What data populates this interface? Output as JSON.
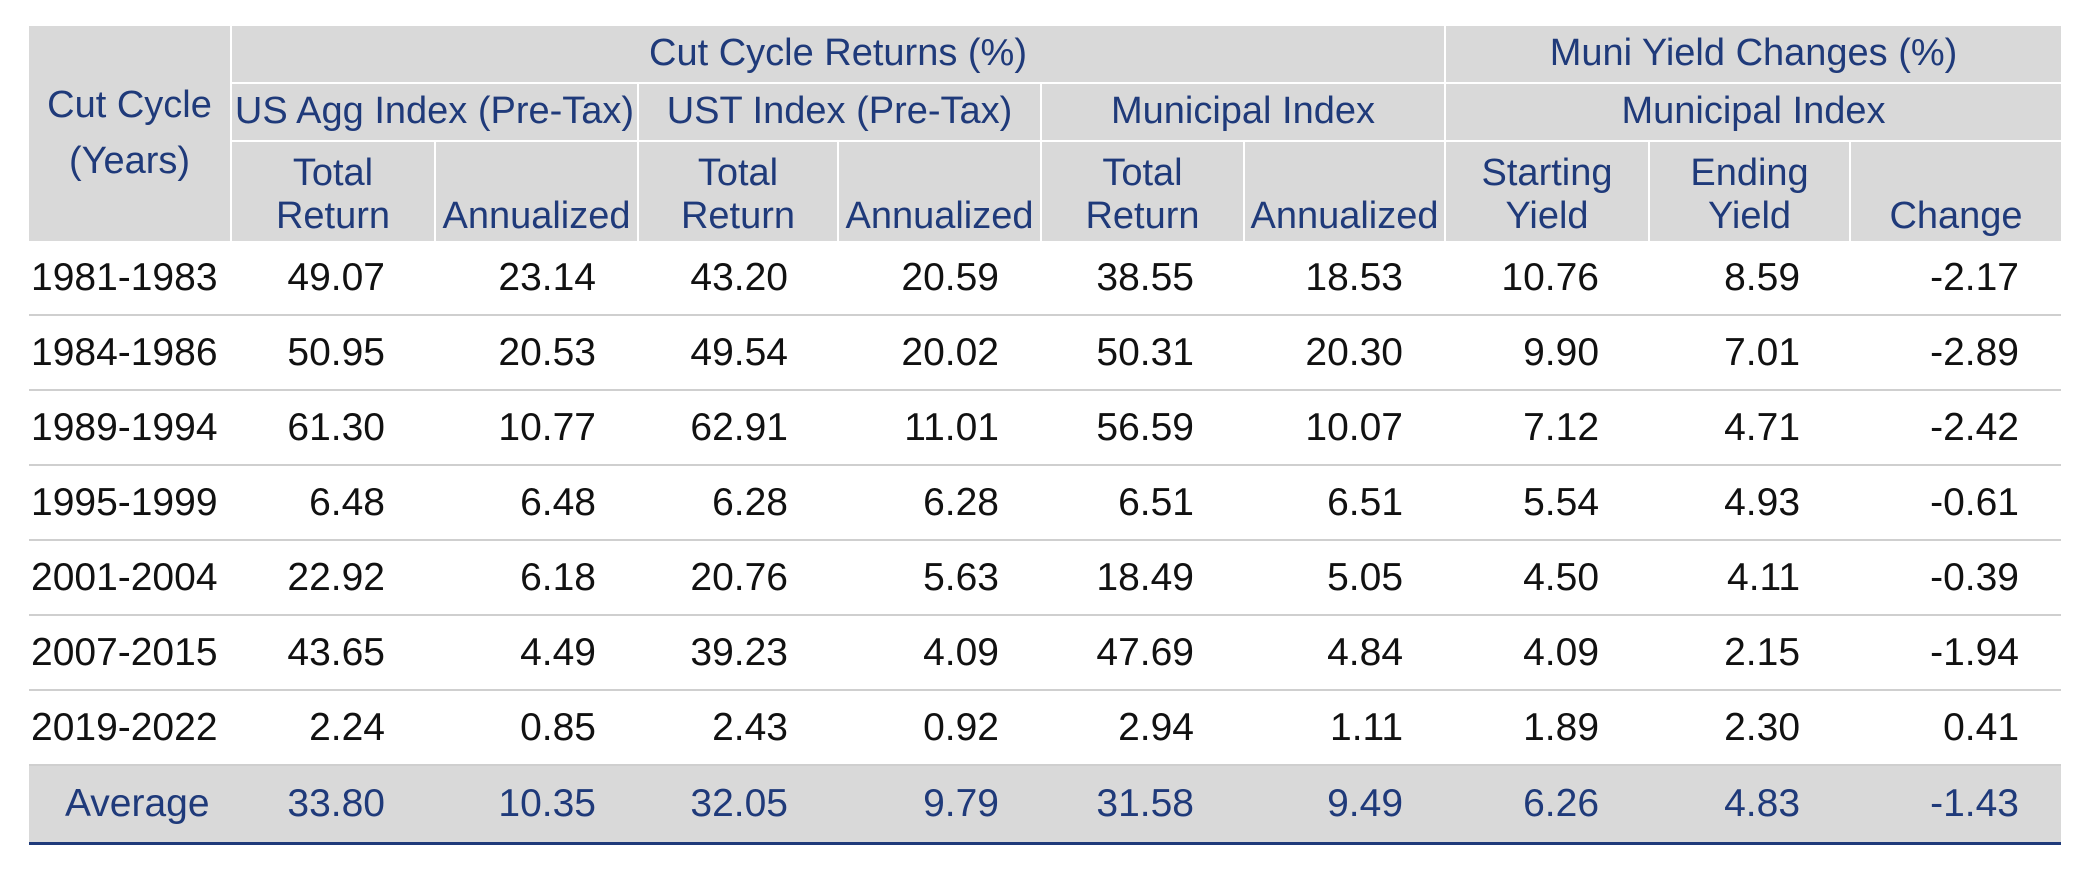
{
  "header": {
    "cut_cycle": [
      "Cut Cycle",
      "(Years)"
    ],
    "group_returns": "Cut Cycle Returns (%)",
    "group_yields": "Muni Yield Changes (%)",
    "index_agg": "US Agg Index (Pre-Tax)",
    "index_ust": "UST Index (Pre-Tax)",
    "index_muni": "Municipal Index",
    "index_muni_yield": "Municipal Index",
    "total_return": [
      "Total",
      "Return"
    ],
    "annualized": "Annualized",
    "starting_yield": [
      "Starting",
      "Yield"
    ],
    "ending_yield": [
      "Ending",
      "Yield"
    ],
    "change": "Change"
  },
  "rows": [
    {
      "cycle": "1981-1983",
      "values": [
        "49.07",
        "23.14",
        "43.20",
        "20.59",
        "38.55",
        "18.53",
        "10.76",
        "8.59",
        "-2.17"
      ]
    },
    {
      "cycle": "1984-1986",
      "values": [
        "50.95",
        "20.53",
        "49.54",
        "20.02",
        "50.31",
        "20.30",
        "9.90",
        "7.01",
        "-2.89"
      ]
    },
    {
      "cycle": "1989-1994",
      "values": [
        "61.30",
        "10.77",
        "62.91",
        "11.01",
        "56.59",
        "10.07",
        "7.12",
        "4.71",
        "-2.42"
      ]
    },
    {
      "cycle": "1995-1999",
      "values": [
        "6.48",
        "6.48",
        "6.28",
        "6.28",
        "6.51",
        "6.51",
        "5.54",
        "4.93",
        "-0.61"
      ]
    },
    {
      "cycle": "2001-2004",
      "values": [
        "22.92",
        "6.18",
        "20.76",
        "5.63",
        "18.49",
        "5.05",
        "4.50",
        "4.11",
        "-0.39"
      ]
    },
    {
      "cycle": "2007-2015",
      "values": [
        "43.65",
        "4.49",
        "39.23",
        "4.09",
        "47.69",
        "4.84",
        "4.09",
        "2.15",
        "-1.94"
      ]
    },
    {
      "cycle": "2019-2022",
      "values": [
        "2.24",
        "0.85",
        "2.43",
        "0.92",
        "2.94",
        "1.11",
        "1.89",
        "2.30",
        "0.41"
      ]
    }
  ],
  "average": {
    "label": "Average",
    "values": [
      "33.80",
      "10.35",
      "32.05",
      "9.79",
      "31.58",
      "9.49",
      "6.26",
      "4.83",
      "-1.43"
    ]
  },
  "colors": {
    "header_bg": "#d9d9d9",
    "header_text": "#1f3a7a",
    "body_text": "#111111",
    "row_divider": "#cfcfcf"
  }
}
